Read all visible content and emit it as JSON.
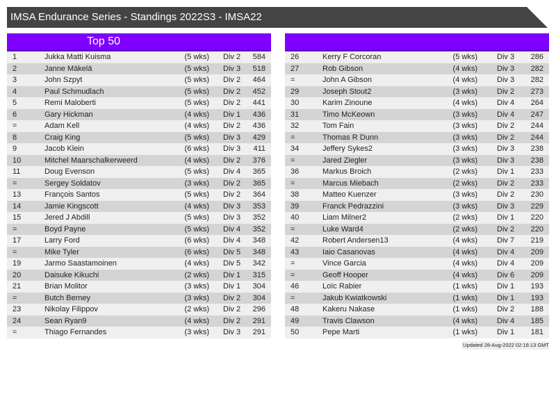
{
  "title": "IMSA Endurance Series - Standings 2022S3 - IMSA22",
  "left_panel": {
    "header": "Top 50"
  },
  "right_panel": {
    "header": ""
  },
  "colors": {
    "header_purple": "#8000ff",
    "title_bar": "#444444"
  },
  "left_rows": [
    [
      "1",
      "Jukka Matti Kuisma",
      "(5 wks)",
      "Div 2",
      "584"
    ],
    [
      "2",
      "Janne Mäkelä",
      "(5 wks)",
      "Div 3",
      "518"
    ],
    [
      "3",
      "John Szpyt",
      "(5 wks)",
      "Div 2",
      "464"
    ],
    [
      "4",
      "Paul Schmudlach",
      "(5 wks)",
      "Div 2",
      "452"
    ],
    [
      "5",
      "Remi Maloberti",
      "(5 wks)",
      "Div 2",
      "441"
    ],
    [
      "6",
      "Gary Hickman",
      "(4 wks)",
      "Div 1",
      "436"
    ],
    [
      "=",
      "Adam Kell",
      "(4 wks)",
      "Div 2",
      "436"
    ],
    [
      "8",
      "Craig King",
      "(5 wks)",
      "Div 3",
      "429"
    ],
    [
      "9",
      "Jacob Klein",
      "(6 wks)",
      "Div 3",
      "411"
    ],
    [
      "10",
      "Mitchel Maarschalkerweerd",
      "(4 wks)",
      "Div 2",
      "376"
    ],
    [
      "11",
      "Doug Evenson",
      "(5 wks)",
      "Div 4",
      "365"
    ],
    [
      "=",
      "Sergey Soldatov",
      "(3 wks)",
      "Div 2",
      "365"
    ],
    [
      "13",
      "François Santos",
      "(5 wks)",
      "Div 2",
      "364"
    ],
    [
      "14",
      "Jamie Kingscott",
      "(4 wks)",
      "Div 3",
      "353"
    ],
    [
      "15",
      "Jered J Abdill",
      "(5 wks)",
      "Div 3",
      "352"
    ],
    [
      "=",
      "Boyd Payne",
      "(5 wks)",
      "Div 4",
      "352"
    ],
    [
      "17",
      "Larry Ford",
      "(6 wks)",
      "Div 4",
      "348"
    ],
    [
      "=",
      "Mike Tyler",
      "(6 wks)",
      "Div 5",
      "348"
    ],
    [
      "19",
      "Jarmo Saastamoinen",
      "(4 wks)",
      "Div 5",
      "342"
    ],
    [
      "20",
      "Daisuke Kikuchi",
      "(2 wks)",
      "Div 1",
      "315"
    ],
    [
      "21",
      "Brian Molitor",
      "(3 wks)",
      "Div 1",
      "304"
    ],
    [
      "=",
      "Butch Berney",
      "(3 wks)",
      "Div 2",
      "304"
    ],
    [
      "23",
      "Nikolay Filippov",
      "(2 wks)",
      "Div 2",
      "296"
    ],
    [
      "24",
      "Sean Ryan9",
      "(4 wks)",
      "Div 2",
      "291"
    ],
    [
      "=",
      "Thiago Fernandes",
      "(3 wks)",
      "Div 3",
      "291"
    ]
  ],
  "right_rows": [
    [
      "26",
      "Kerry F Corcoran",
      "(5 wks)",
      "Div 3",
      "286"
    ],
    [
      "27",
      "Rob Gibson",
      "(4 wks)",
      "Div 3",
      "282"
    ],
    [
      "=",
      "John A Gibson",
      "(4 wks)",
      "Div 3",
      "282"
    ],
    [
      "29",
      "Joseph Stout2",
      "(3 wks)",
      "Div 2",
      "273"
    ],
    [
      "30",
      "Karim Zinoune",
      "(4 wks)",
      "Div 4",
      "264"
    ],
    [
      "31",
      "Timo McKeown",
      "(3 wks)",
      "Div 4",
      "247"
    ],
    [
      "32",
      "Tom Fain",
      "(3 wks)",
      "Div 2",
      "244"
    ],
    [
      "=",
      "Thomas R Dunn",
      "(3 wks)",
      "Div 2",
      "244"
    ],
    [
      "34",
      "Jeffery Sykes2",
      "(3 wks)",
      "Div 3",
      "238"
    ],
    [
      "=",
      "Jared Ziegler",
      "(3 wks)",
      "Div 3",
      "238"
    ],
    [
      "36",
      "Markus Broich",
      "(2 wks)",
      "Div 1",
      "233"
    ],
    [
      "=",
      "Marcus Miebach",
      "(2 wks)",
      "Div 2",
      "233"
    ],
    [
      "38",
      "Matteo Kuenzer",
      "(3 wks)",
      "Div 2",
      "230"
    ],
    [
      "39",
      "Franck Pedrazzini",
      "(3 wks)",
      "Div 3",
      "229"
    ],
    [
      "40",
      "Liam Milner2",
      "(2 wks)",
      "Div 1",
      "220"
    ],
    [
      "=",
      "Luke Ward4",
      "(2 wks)",
      "Div 2",
      "220"
    ],
    [
      "42",
      "Robert Andersen13",
      "(4 wks)",
      "Div 7",
      "219"
    ],
    [
      "43",
      "Iaio Casanovas",
      "(4 wks)",
      "Div 4",
      "209"
    ],
    [
      "=",
      "Vince Garcia",
      "(4 wks)",
      "Div 4",
      "209"
    ],
    [
      "=",
      "Geoff Hooper",
      "(4 wks)",
      "Div 6",
      "209"
    ],
    [
      "46",
      "Loïc Rabier",
      "(1 wks)",
      "Div 1",
      "193"
    ],
    [
      "=",
      "Jakub Kwiatkowski",
      "(1 wks)",
      "Div 1",
      "193"
    ],
    [
      "48",
      "Kakeru Nakase",
      "(1 wks)",
      "Div 2",
      "188"
    ],
    [
      "49",
      "Travis Clawson",
      "(4 wks)",
      "Div 4",
      "185"
    ],
    [
      "50",
      "Pepe Marti",
      "(1 wks)",
      "Div 1",
      "181"
    ]
  ],
  "footer": "Updated 28-Aug-2022 02:16:13 GMT"
}
